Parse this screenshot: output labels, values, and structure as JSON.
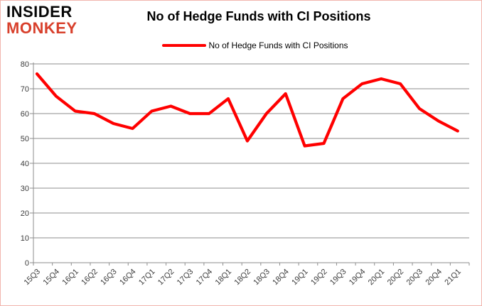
{
  "logo": {
    "line1": "INSIDER",
    "line2": "MONKEY"
  },
  "header": {
    "title": "No of Hedge Funds with CI Positions"
  },
  "legend": {
    "label": "No of Hedge Funds with CI Positions",
    "line_color": "#ff0000"
  },
  "colors": {
    "series_red": "#ff0000",
    "logo_red": "#d8402c",
    "grid_gray": "#8e8e8e",
    "axis_text": "#3c3c3c",
    "border_pink": "#f2b5ad"
  },
  "chart_data": {
    "type": "line",
    "title": "No of Hedge Funds with CI Positions",
    "xlabel": "",
    "ylabel": "",
    "ylim": [
      0,
      80
    ],
    "yticks": [
      80,
      70,
      60,
      50,
      40,
      30,
      20,
      10,
      0
    ],
    "grid": true,
    "legend_position": "top",
    "categories": [
      "15Q3",
      "15Q4",
      "16Q1",
      "16Q2",
      "16Q3",
      "16Q4",
      "17Q1",
      "17Q2",
      "17Q3",
      "17Q4",
      "18Q1",
      "18Q2",
      "18Q3",
      "18Q4",
      "19Q1",
      "19Q2",
      "19Q3",
      "19Q4",
      "20Q1",
      "20Q2",
      "20Q3",
      "20Q4",
      "21Q1"
    ],
    "series": [
      {
        "name": "No of Hedge Funds with CI Positions",
        "color": "#ff0000",
        "values": [
          76,
          67,
          61,
          60,
          56,
          54,
          61,
          63,
          60,
          60,
          66,
          49,
          60,
          68,
          47,
          48,
          66,
          72,
          74,
          72,
          62,
          57,
          53
        ]
      }
    ]
  }
}
